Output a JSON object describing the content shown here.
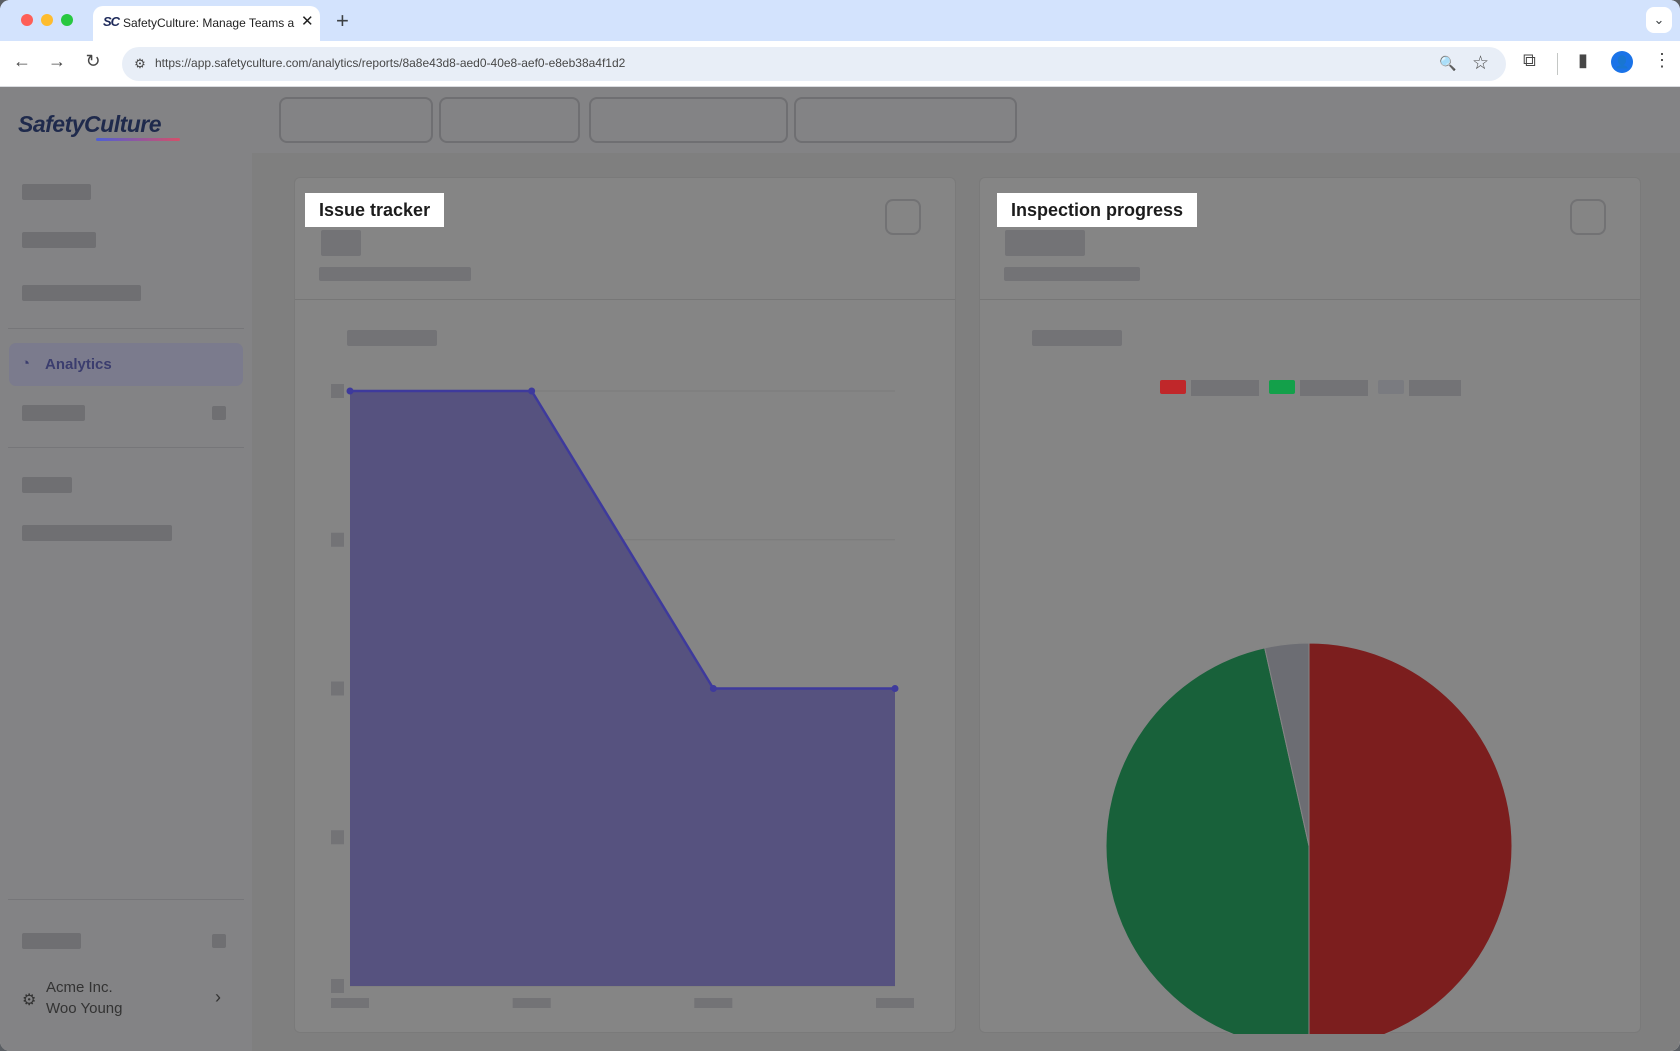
{
  "browser": {
    "tab_favicon": "SC",
    "tab_title": "SafetyCulture: Manage Teams and...",
    "tab_close": "✕",
    "new_tab": "+",
    "tab_menu": "⌄",
    "url": "https://app.safetyculture.com/analytics/reports/8a8e43d8-aed0-40e8-aef0-e8eb38a4f1d2",
    "icons": {
      "back": "←",
      "forward": "→",
      "reload": "↻",
      "site_info": "⚙",
      "zoom": "🔍",
      "bookmark": "☆",
      "extensions": "⧉",
      "side_panel": "▮",
      "profile": "👤",
      "menu": "⋮"
    }
  },
  "sidebar": {
    "logo": "SafetyCulture",
    "active_item": {
      "label": "Analytics",
      "icon": "◔"
    },
    "org": {
      "name": "Acme Inc.",
      "user": "Woo Young",
      "icon": "⚙",
      "chevron": "›"
    }
  },
  "cards": [
    {
      "title": "Issue tracker",
      "chart_data": {
        "type": "area",
        "x": [
          0,
          1,
          2,
          3
        ],
        "values": [
          1.0,
          1.0,
          0.5,
          0.5
        ],
        "ylim": [
          0,
          1
        ],
        "color": "#56527f",
        "line_color": "#3e3a9c",
        "grid": true
      }
    },
    {
      "title": "Inspection progress",
      "chart_data": {
        "type": "pie",
        "values": [
          50,
          46.5,
          3.5
        ],
        "colors": [
          "#7c1e1e",
          "#18613a",
          "#6c6d73"
        ],
        "legend_placement": "top-center",
        "legend_colors": [
          "#c0272a",
          "#13a04a",
          "#7a7b80"
        ]
      }
    }
  ]
}
